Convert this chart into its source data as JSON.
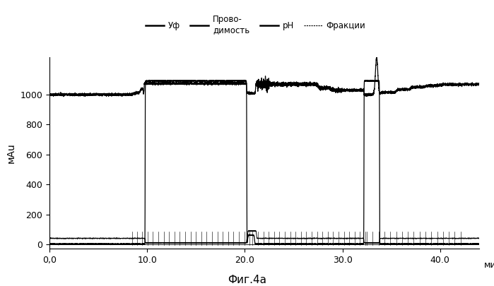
{
  "title": "Фиг.4а",
  "ylabel": "мАu",
  "xlabel": "мин",
  "xlim": [
    0,
    44
  ],
  "ylim": [
    -30,
    1250
  ],
  "yticks": [
    0,
    200,
    400,
    600,
    800,
    1000
  ],
  "xticks": [
    0.0,
    10.0,
    20.0,
    30.0,
    40.0
  ],
  "xtick_labels": [
    "0,0",
    "10.0",
    "20.0",
    "30.0",
    "40.0"
  ],
  "bg_color": "#ffffff",
  "line_color": "#000000"
}
